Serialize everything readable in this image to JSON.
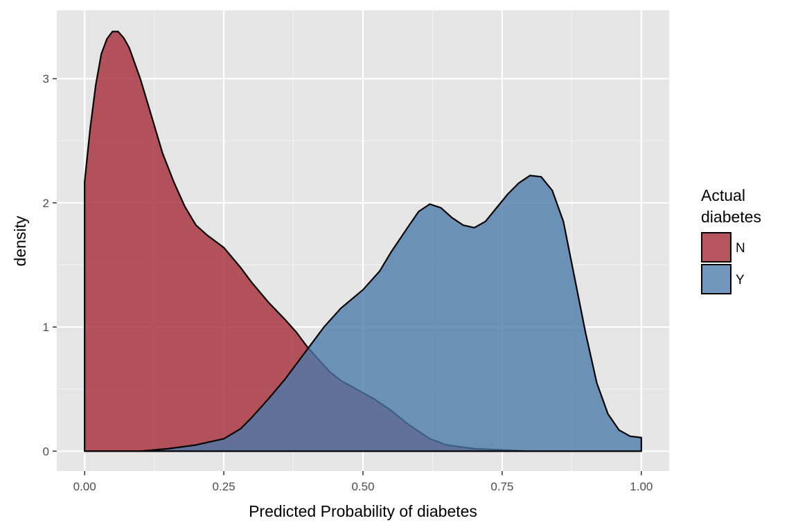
{
  "chart_data": {
    "type": "area",
    "subtype": "density",
    "xlabel": "Predicted Probability of diabetes",
    "ylabel": "density",
    "xlim": [
      -0.05,
      1.05
    ],
    "ylim": [
      -0.16,
      3.55
    ],
    "x_ticks": [
      0.0,
      0.25,
      0.5,
      0.75,
      1.0
    ],
    "x_tick_labels": [
      "0.00",
      "0.25",
      "0.50",
      "0.75",
      "1.00"
    ],
    "y_ticks": [
      0,
      1,
      2,
      3
    ],
    "y_tick_labels": [
      "0",
      "1",
      "2",
      "3"
    ],
    "x_minor_ticks": [
      0.125,
      0.375,
      0.625,
      0.875
    ],
    "y_minor_ticks": [
      0.5,
      1.5,
      2.5
    ],
    "grid": true,
    "legend": {
      "title_lines": [
        "Actual",
        "diabetes"
      ],
      "position": "right"
    },
    "series": [
      {
        "name": "N",
        "color": "#a7303b",
        "opacity": 0.82,
        "x": [
          0.0,
          0.01,
          0.02,
          0.03,
          0.04,
          0.05,
          0.06,
          0.07,
          0.08,
          0.1,
          0.12,
          0.14,
          0.16,
          0.18,
          0.2,
          0.22,
          0.25,
          0.28,
          0.3,
          0.33,
          0.36,
          0.38,
          0.4,
          0.42,
          0.44,
          0.46,
          0.5,
          0.52,
          0.55,
          0.58,
          0.62,
          0.65,
          0.7,
          0.75,
          0.8,
          0.9,
          1.0
        ],
        "y": [
          2.17,
          2.6,
          2.95,
          3.2,
          3.32,
          3.38,
          3.38,
          3.33,
          3.25,
          3.0,
          2.7,
          2.4,
          2.17,
          1.97,
          1.82,
          1.74,
          1.64,
          1.48,
          1.36,
          1.2,
          1.06,
          0.96,
          0.84,
          0.74,
          0.64,
          0.57,
          0.47,
          0.42,
          0.33,
          0.22,
          0.1,
          0.05,
          0.02,
          0.01,
          0.0,
          0.0,
          0.0
        ]
      },
      {
        "name": "Y",
        "color": "#4a7aab",
        "opacity": 0.78,
        "x": [
          0.0,
          0.1,
          0.15,
          0.2,
          0.25,
          0.28,
          0.3,
          0.33,
          0.36,
          0.4,
          0.43,
          0.46,
          0.5,
          0.53,
          0.55,
          0.58,
          0.6,
          0.62,
          0.64,
          0.66,
          0.68,
          0.7,
          0.72,
          0.74,
          0.76,
          0.78,
          0.8,
          0.82,
          0.84,
          0.86,
          0.88,
          0.9,
          0.92,
          0.94,
          0.96,
          0.98,
          1.0
        ],
        "y": [
          0.0,
          0.0,
          0.02,
          0.05,
          0.1,
          0.18,
          0.27,
          0.42,
          0.58,
          0.82,
          1.0,
          1.15,
          1.3,
          1.45,
          1.6,
          1.8,
          1.93,
          1.99,
          1.96,
          1.88,
          1.82,
          1.8,
          1.85,
          1.96,
          2.07,
          2.16,
          2.22,
          2.21,
          2.1,
          1.85,
          1.4,
          0.95,
          0.55,
          0.3,
          0.17,
          0.12,
          0.11
        ]
      }
    ]
  }
}
